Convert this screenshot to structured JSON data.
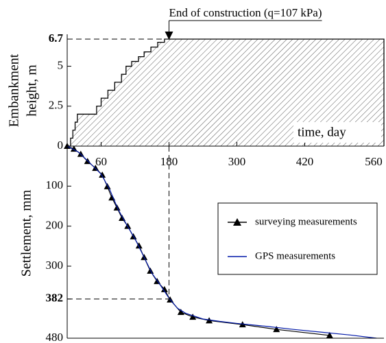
{
  "chart_data": [
    {
      "type": "step-area",
      "annotation": "End of construction (q=107 kPa)",
      "xlabel": "time, day",
      "ylabel": [
        "Embankment",
        "height, m"
      ],
      "xlim": [
        0,
        560
      ],
      "ylim": [
        0,
        7
      ],
      "yticks": [
        0,
        2.5,
        5,
        6.7
      ],
      "reference": {
        "x": 180,
        "y": 6.7
      },
      "hatch": true,
      "color": "#000000",
      "x": [
        0,
        6,
        10,
        14,
        18,
        52,
        60,
        72,
        84,
        96,
        104,
        114,
        126,
        136,
        148,
        160,
        172,
        180,
        560
      ],
      "values": [
        0,
        0.5,
        1,
        1.5,
        2,
        2.5,
        3,
        3.5,
        4,
        4.5,
        5,
        5.3,
        5.6,
        5.9,
        6.2,
        6.5,
        6.7,
        6.7,
        6.7
      ]
    },
    {
      "type": "line",
      "ylabel": "Settlement, mm",
      "xlim": [
        0,
        560
      ],
      "ylim": [
        0,
        480
      ],
      "y_inverted": true,
      "xticks": [
        60,
        180,
        300,
        420,
        560
      ],
      "yticks": [
        100,
        200,
        300,
        382,
        480
      ],
      "reference": {
        "x": 180,
        "y": 382
      },
      "legend": "right",
      "series": [
        {
          "name": "surveying measurements",
          "color": "#000000",
          "marker": "triangle",
          "x": [
            0,
            12,
            24,
            36,
            50,
            62,
            71,
            79,
            88,
            97,
            107,
            117,
            127,
            136,
            147,
            159,
            172,
            182,
            201,
            222,
            251,
            310,
            370,
            464
          ],
          "values": [
            0,
            7,
            20,
            38,
            55,
            72,
            101,
            129,
            154,
            180,
            200,
            226,
            249,
            278,
            312,
            338,
            358,
            384,
            415,
            427,
            436,
            446,
            458,
            473
          ]
        },
        {
          "name": "GPS measurements",
          "color": "#0018a8",
          "x": [
            0,
            20,
            40,
            60,
            75,
            90,
            105,
            120,
            135,
            150,
            165,
            180,
            195,
            210,
            240,
            270,
            300,
            350,
            400,
            450,
            500,
            547
          ],
          "values": [
            0,
            15,
            42,
            70,
            108,
            158,
            196,
            232,
            275,
            318,
            348,
            380,
            405,
            418,
            432,
            438,
            443,
            450,
            458,
            465,
            472,
            480
          ]
        }
      ]
    }
  ]
}
